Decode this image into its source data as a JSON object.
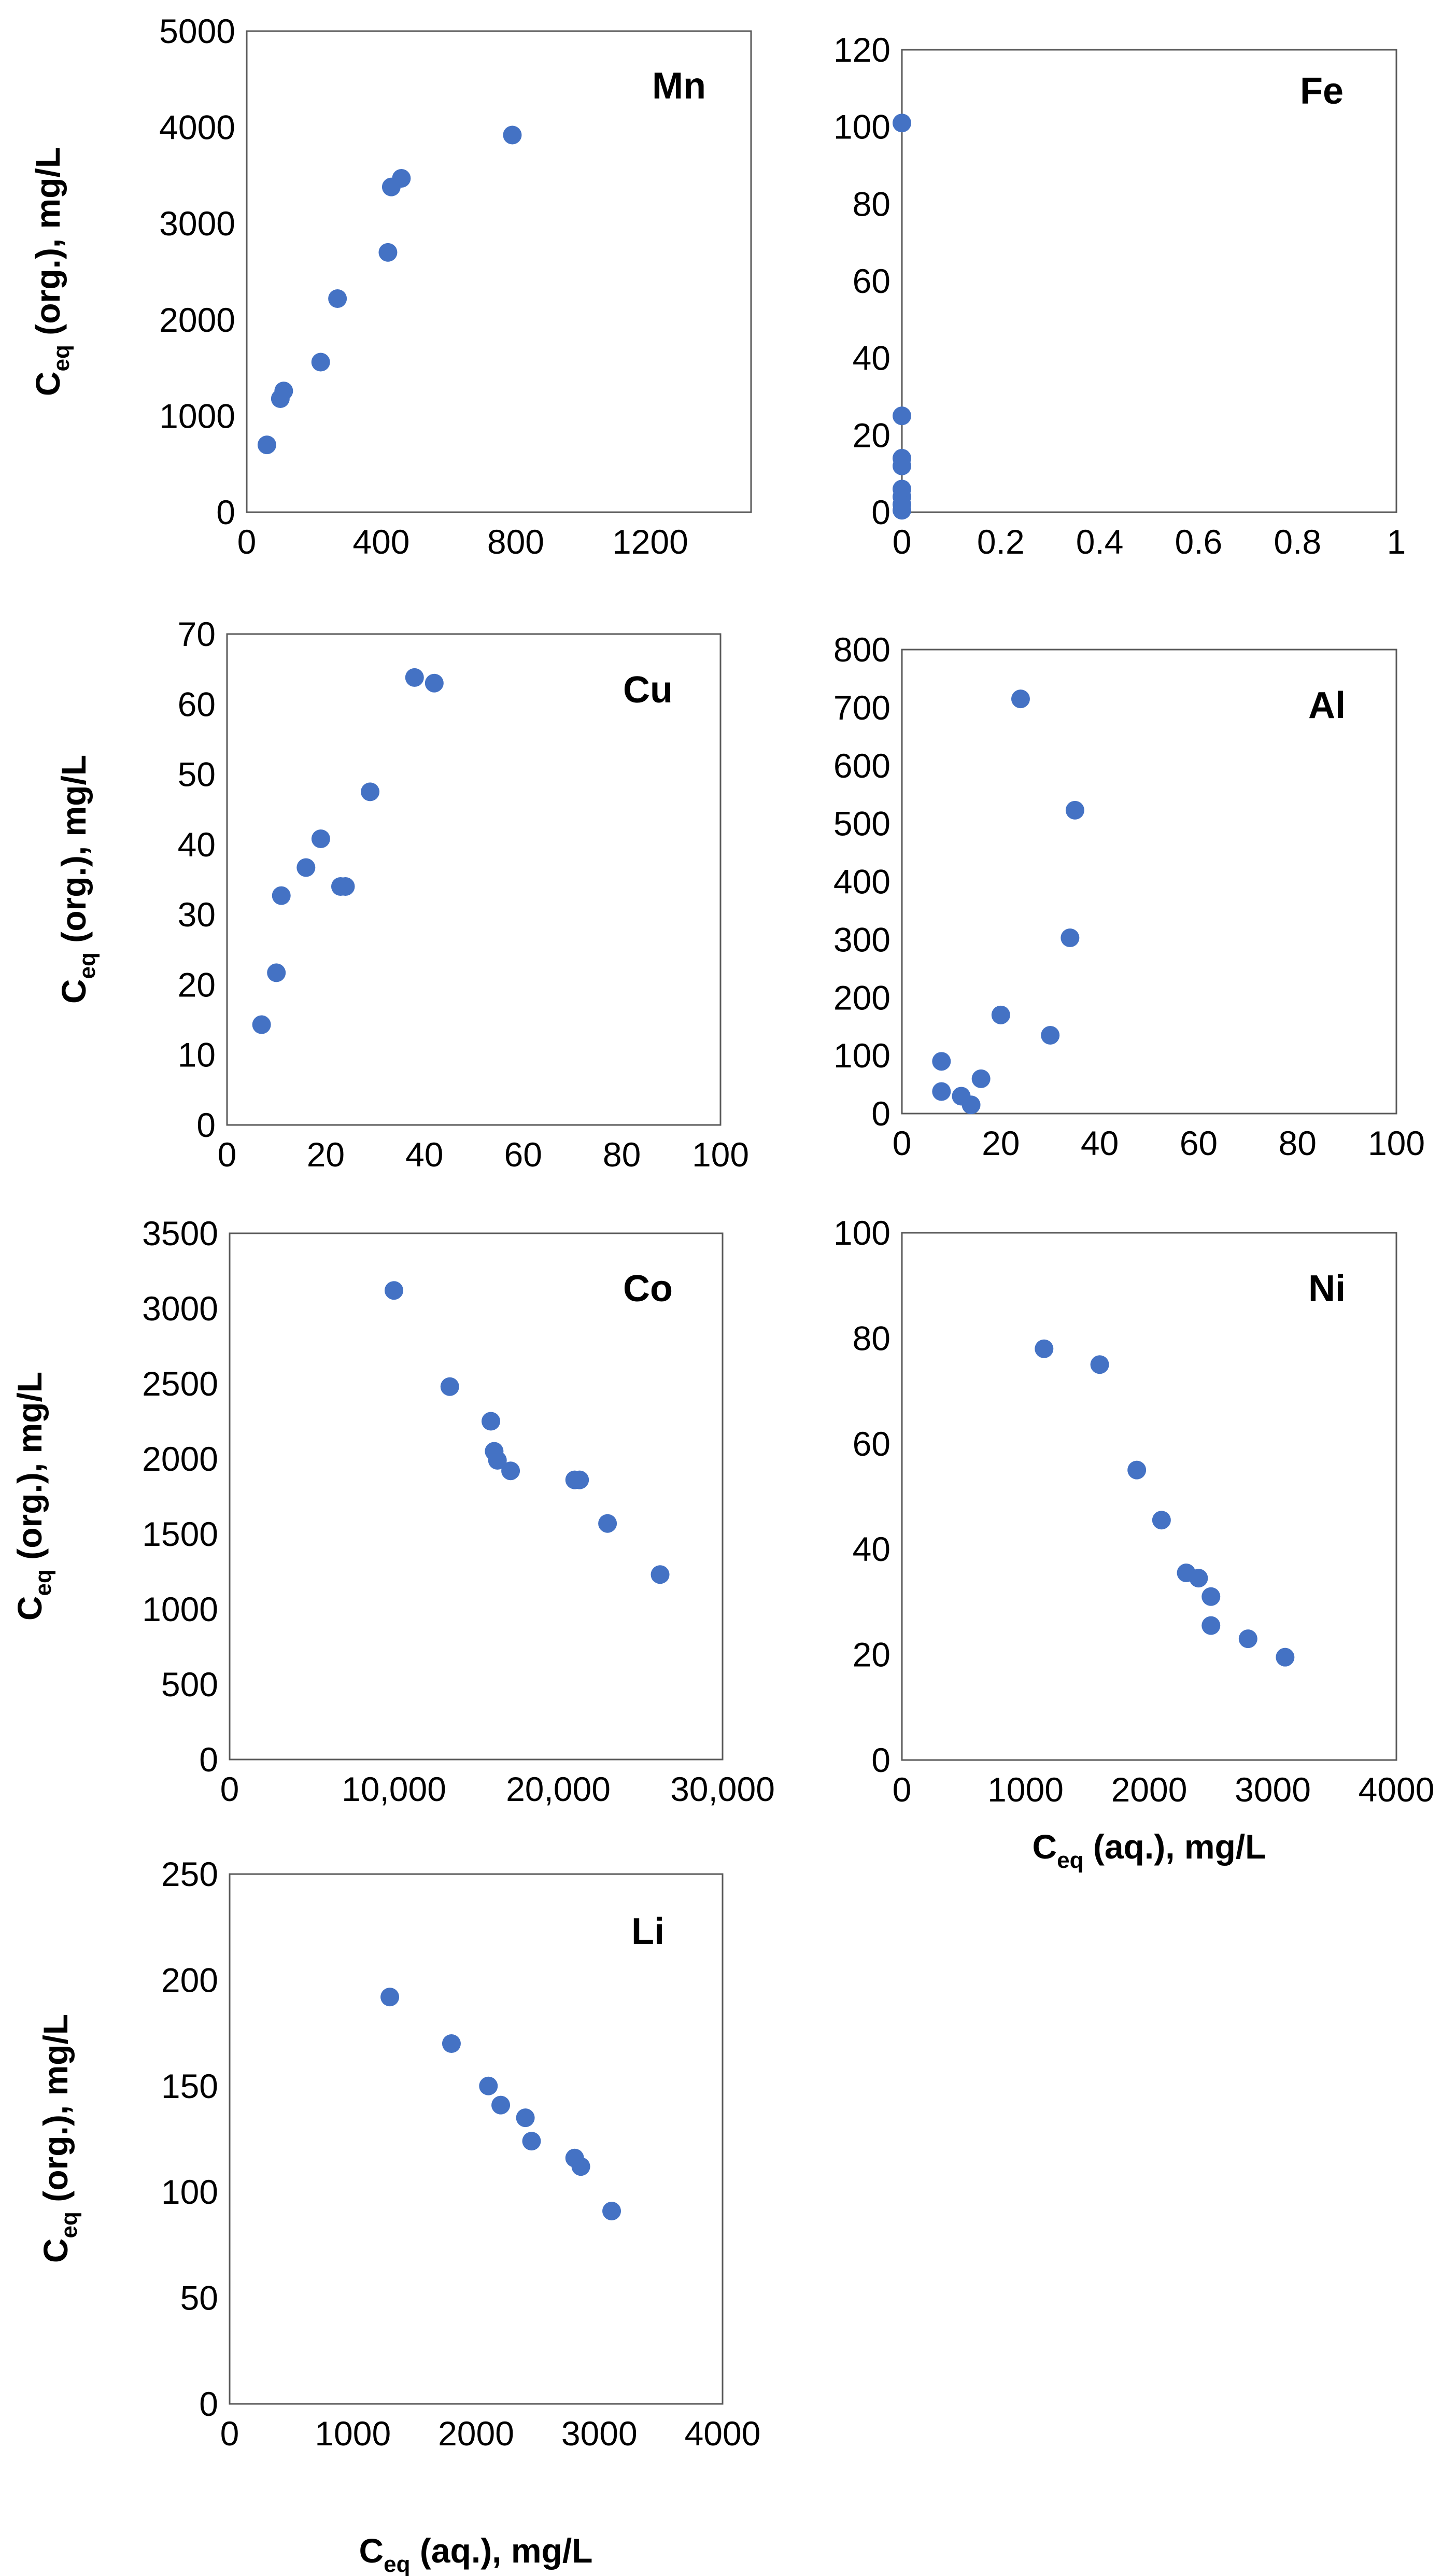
{
  "chart_data": [
    {
      "type": "scatter",
      "title": "Mn",
      "ylabel": {
        "main": "C",
        "sub": "eq",
        "rest": " (org.), mg/L"
      },
      "xlabel": null,
      "xlim": [
        0,
        1500
      ],
      "ylim": [
        0,
        5000
      ],
      "xticks": [
        0,
        400,
        800,
        1200
      ],
      "xtick_labels": [
        "0",
        "400",
        "800",
        "1200"
      ],
      "yticks": [
        0,
        1000,
        2000,
        3000,
        4000,
        5000
      ],
      "ytick_labels": [
        "0",
        "1000",
        "2000",
        "3000",
        "4000",
        "5000"
      ],
      "color": "#4472C4",
      "points": [
        [
          60,
          700
        ],
        [
          100,
          1180
        ],
        [
          110,
          1260
        ],
        [
          220,
          1560
        ],
        [
          270,
          2220
        ],
        [
          420,
          2700
        ],
        [
          430,
          3380
        ],
        [
          460,
          3470
        ],
        [
          790,
          3920
        ]
      ]
    },
    {
      "type": "scatter",
      "title": "Fe",
      "ylabel": null,
      "xlabel": null,
      "xlim": [
        0,
        1
      ],
      "ylim": [
        0,
        120
      ],
      "xticks": [
        0,
        0.2,
        0.4,
        0.6,
        0.8,
        1
      ],
      "xtick_labels": [
        "0",
        "0.2",
        "0.4",
        "0.6",
        "0.8",
        "1"
      ],
      "yticks": [
        0,
        20,
        40,
        60,
        80,
        100,
        120
      ],
      "ytick_labels": [
        "0",
        "20",
        "40",
        "60",
        "80",
        "100",
        "120"
      ],
      "color": "#4472C4",
      "points": [
        [
          0,
          101
        ],
        [
          0,
          25
        ],
        [
          0,
          14
        ],
        [
          0,
          12
        ],
        [
          0,
          6
        ],
        [
          0,
          4
        ],
        [
          0,
          2
        ],
        [
          0,
          0.5
        ]
      ]
    },
    {
      "type": "scatter",
      "title": "Cu",
      "ylabel": {
        "main": "C",
        "sub": "eq",
        "rest": " (org.), mg/L"
      },
      "xlabel": null,
      "xlim": [
        0,
        100
      ],
      "ylim": [
        0,
        70
      ],
      "xticks": [
        0,
        20,
        40,
        60,
        80,
        100
      ],
      "xtick_labels": [
        "0",
        "20",
        "40",
        "60",
        "80",
        "100"
      ],
      "yticks": [
        0,
        10,
        20,
        30,
        40,
        50,
        60,
        70
      ],
      "ytick_labels": [
        "0",
        "10",
        "20",
        "30",
        "40",
        "50",
        "60",
        "70"
      ],
      "color": "#4472C4",
      "points": [
        [
          7,
          14.3
        ],
        [
          10,
          21.7
        ],
        [
          11,
          32.7
        ],
        [
          16,
          36.7
        ],
        [
          19,
          40.8
        ],
        [
          23,
          34
        ],
        [
          24,
          34
        ],
        [
          29,
          47.5
        ],
        [
          38,
          63.8
        ],
        [
          42,
          63
        ]
      ]
    },
    {
      "type": "scatter",
      "title": "Al",
      "ylabel": null,
      "xlabel": null,
      "xlim": [
        0,
        100
      ],
      "ylim": [
        0,
        800
      ],
      "xticks": [
        0,
        20,
        40,
        60,
        80,
        100
      ],
      "xtick_labels": [
        "0",
        "20",
        "40",
        "60",
        "80",
        "100"
      ],
      "yticks": [
        0,
        100,
        200,
        300,
        400,
        500,
        600,
        700,
        800
      ],
      "ytick_labels": [
        "0",
        "100",
        "200",
        "300",
        "400",
        "500",
        "600",
        "700",
        "800"
      ],
      "color": "#4472C4",
      "points": [
        [
          8,
          90
        ],
        [
          8,
          38
        ],
        [
          12,
          30
        ],
        [
          14,
          15
        ],
        [
          16,
          60
        ],
        [
          20,
          170
        ],
        [
          24,
          715
        ],
        [
          30,
          135
        ],
        [
          34,
          303
        ],
        [
          35,
          523
        ]
      ]
    },
    {
      "type": "scatter",
      "title": "Co",
      "ylabel": {
        "main": "C",
        "sub": "eq",
        "rest": " (org.), mg/L"
      },
      "xlabel": null,
      "xlim": [
        0,
        30000
      ],
      "ylim": [
        0,
        3500
      ],
      "xticks": [
        0,
        10000,
        20000,
        30000
      ],
      "xtick_labels": [
        "0",
        "10,000",
        "20,000",
        "30,000"
      ],
      "yticks": [
        0,
        500,
        1000,
        1500,
        2000,
        2500,
        3000,
        3500
      ],
      "ytick_labels": [
        "0",
        "500",
        "1000",
        "1500",
        "2000",
        "2500",
        "3000",
        "3500"
      ],
      "color": "#4472C4",
      "points": [
        [
          10000,
          3120
        ],
        [
          13400,
          2480
        ],
        [
          15900,
          2250
        ],
        [
          16100,
          2050
        ],
        [
          16300,
          1990
        ],
        [
          17100,
          1920
        ],
        [
          21000,
          1860
        ],
        [
          21300,
          1860
        ],
        [
          23000,
          1570
        ],
        [
          26200,
          1230
        ]
      ]
    },
    {
      "type": "scatter",
      "title": "Ni",
      "ylabel": null,
      "xlabel": {
        "main": "C",
        "sub": "eq",
        "rest": " (aq.), mg/L"
      },
      "xlim": [
        0,
        4000
      ],
      "ylim": [
        0,
        100
      ],
      "xticks": [
        0,
        1000,
        2000,
        3000,
        4000
      ],
      "xtick_labels": [
        "0",
        "1000",
        "2000",
        "3000",
        "4000"
      ],
      "yticks": [
        0,
        20,
        40,
        60,
        80,
        100
      ],
      "ytick_labels": [
        "0",
        "20",
        "40",
        "60",
        "80",
        "100"
      ],
      "color": "#4472C4",
      "points": [
        [
          1150,
          78
        ],
        [
          1600,
          75
        ],
        [
          1900,
          55
        ],
        [
          2100,
          45.5
        ],
        [
          2300,
          35.5
        ],
        [
          2400,
          34.5
        ],
        [
          2500,
          31
        ],
        [
          2500,
          25.5
        ],
        [
          2800,
          23
        ],
        [
          3100,
          19.5
        ]
      ]
    },
    {
      "type": "scatter",
      "title": "Li",
      "ylabel": {
        "main": "C",
        "sub": "eq",
        "rest": " (org.), mg/L"
      },
      "xlabel": {
        "main": "C",
        "sub": "eq",
        "rest": " (aq.), mg/L"
      },
      "xlim": [
        0,
        4000
      ],
      "ylim": [
        0,
        250
      ],
      "xticks": [
        0,
        1000,
        2000,
        3000,
        4000
      ],
      "xtick_labels": [
        "0",
        "1000",
        "2000",
        "3000",
        "4000"
      ],
      "yticks": [
        0,
        50,
        100,
        150,
        200,
        250
      ],
      "ytick_labels": [
        "0",
        "50",
        "100",
        "150",
        "200",
        "250"
      ],
      "color": "#4472C4",
      "points": [
        [
          1300,
          192
        ],
        [
          1800,
          170
        ],
        [
          2100,
          150
        ],
        [
          2200,
          141
        ],
        [
          2400,
          135
        ],
        [
          2450,
          124
        ],
        [
          2800,
          116
        ],
        [
          2850,
          112
        ],
        [
          3100,
          91
        ]
      ]
    }
  ]
}
